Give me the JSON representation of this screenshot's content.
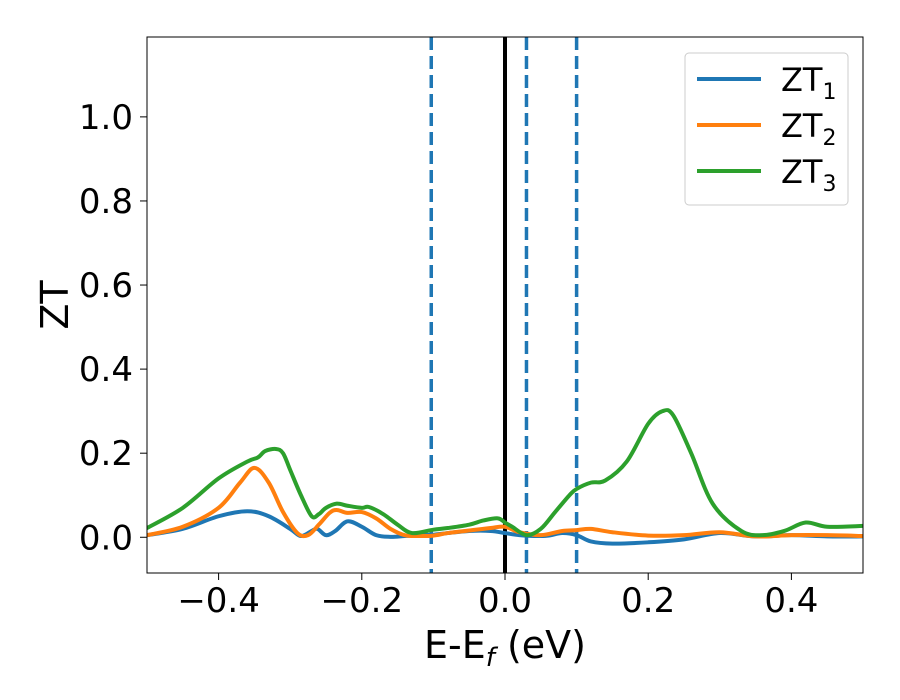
{
  "chart_data": {
    "type": "line",
    "title": "",
    "xlabel": {
      "base": "E-E",
      "sub": "f",
      "suffix": " (eV)"
    },
    "ylabel": "ZT",
    "xlim": [
      -0.5,
      0.5
    ],
    "ylim": [
      -0.085,
      1.19
    ],
    "xticks": [
      {
        "value": -0.4,
        "label": "−0.4"
      },
      {
        "value": -0.2,
        "label": "−0.2"
      },
      {
        "value": 0.0,
        "label": "0.0"
      },
      {
        "value": 0.2,
        "label": "0.2"
      },
      {
        "value": 0.4,
        "label": "0.4"
      }
    ],
    "yticks": [
      {
        "value": 0.0,
        "label": "0.0"
      },
      {
        "value": 0.2,
        "label": "0.2"
      },
      {
        "value": 0.4,
        "label": "0.4"
      },
      {
        "value": 0.6,
        "label": "0.6"
      },
      {
        "value": 0.8,
        "label": "0.8"
      },
      {
        "value": 1.0,
        "label": "1.0"
      }
    ],
    "grid": false,
    "legend_position": "top-right",
    "vlines": [
      {
        "x": 0.0,
        "style": "solid",
        "color": "#000000"
      },
      {
        "x": -0.103,
        "style": "dashed",
        "color": "#1f77b4"
      },
      {
        "x": 0.03,
        "style": "dashed",
        "color": "#1f77b4"
      },
      {
        "x": 0.1,
        "style": "dashed",
        "color": "#1f77b4"
      }
    ],
    "series": [
      {
        "name": "ZT",
        "sub": "1",
        "color": "#1f77b4",
        "x": [
          -0.5,
          -0.45,
          -0.4,
          -0.36,
          -0.33,
          -0.3,
          -0.285,
          -0.27,
          -0.262,
          -0.25,
          -0.237,
          -0.22,
          -0.2,
          -0.18,
          -0.16,
          -0.14,
          -0.12,
          -0.1,
          -0.08,
          -0.05,
          -0.02,
          0.0,
          0.02,
          0.04,
          0.06,
          0.08,
          0.1,
          0.12,
          0.15,
          0.2,
          0.25,
          0.3,
          0.35,
          0.4,
          0.45,
          0.5
        ],
        "y": [
          0.005,
          0.02,
          0.05,
          0.062,
          0.05,
          0.02,
          0.003,
          0.015,
          0.02,
          0.005,
          0.015,
          0.038,
          0.025,
          0.005,
          0.001,
          0.003,
          0.005,
          0.006,
          0.01,
          0.015,
          0.015,
          0.01,
          0.005,
          0.003,
          0.004,
          0.01,
          0.005,
          -0.01,
          -0.015,
          -0.012,
          -0.005,
          0.01,
          0.002,
          0.005,
          0.002,
          0.002
        ]
      },
      {
        "name": "ZT",
        "sub": "2",
        "color": "#ff7f0e",
        "x": [
          -0.5,
          -0.45,
          -0.4,
          -0.37,
          -0.35,
          -0.33,
          -0.31,
          -0.29,
          -0.275,
          -0.26,
          -0.245,
          -0.235,
          -0.22,
          -0.2,
          -0.18,
          -0.16,
          -0.14,
          -0.12,
          -0.1,
          -0.08,
          -0.05,
          -0.02,
          0.0,
          0.02,
          0.05,
          0.08,
          0.1,
          0.12,
          0.15,
          0.2,
          0.25,
          0.3,
          0.35,
          0.4,
          0.45,
          0.5
        ],
        "y": [
          0.005,
          0.025,
          0.07,
          0.13,
          0.165,
          0.13,
          0.06,
          0.01,
          0.005,
          0.03,
          0.058,
          0.065,
          0.058,
          0.06,
          0.045,
          0.02,
          0.005,
          0.003,
          0.004,
          0.01,
          0.016,
          0.022,
          0.025,
          0.012,
          0.005,
          0.015,
          0.017,
          0.02,
          0.012,
          0.004,
          0.005,
          0.012,
          0.002,
          0.005,
          0.005,
          0.003
        ]
      },
      {
        "name": "ZT",
        "sub": "3",
        "color": "#2ca02c",
        "x": [
          -0.5,
          -0.45,
          -0.4,
          -0.36,
          -0.345,
          -0.335,
          -0.32,
          -0.31,
          -0.3,
          -0.285,
          -0.27,
          -0.26,
          -0.25,
          -0.235,
          -0.22,
          -0.2,
          -0.19,
          -0.17,
          -0.15,
          -0.13,
          -0.1,
          -0.08,
          -0.05,
          -0.03,
          -0.01,
          0.0,
          0.01,
          0.03,
          0.05,
          0.07,
          0.09,
          0.1,
          0.12,
          0.14,
          0.17,
          0.2,
          0.22,
          0.235,
          0.26,
          0.29,
          0.33,
          0.36,
          0.39,
          0.42,
          0.45,
          0.5
        ],
        "y": [
          0.022,
          0.07,
          0.14,
          0.18,
          0.19,
          0.205,
          0.21,
          0.2,
          0.16,
          0.1,
          0.05,
          0.055,
          0.07,
          0.08,
          0.075,
          0.07,
          0.072,
          0.055,
          0.03,
          0.01,
          0.018,
          0.022,
          0.03,
          0.04,
          0.045,
          0.035,
          0.025,
          0.005,
          0.02,
          0.06,
          0.1,
          0.115,
          0.13,
          0.135,
          0.18,
          0.27,
          0.3,
          0.29,
          0.2,
          0.08,
          0.015,
          0.005,
          0.015,
          0.035,
          0.025,
          0.027
        ]
      }
    ]
  }
}
